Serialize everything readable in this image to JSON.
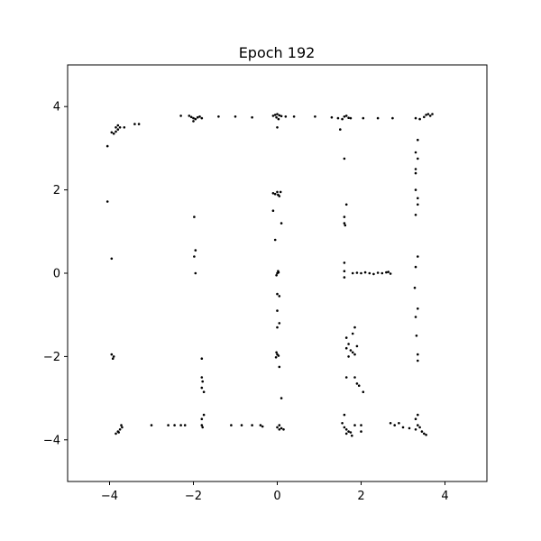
{
  "chart_data": {
    "type": "scatter",
    "title": "Epoch 192",
    "xlabel": "",
    "ylabel": "",
    "xlim": [
      -5,
      5
    ],
    "ylim": [
      -5,
      5
    ],
    "xticks": [
      -4,
      -2,
      0,
      2,
      4
    ],
    "yticks": [
      4,
      2,
      0,
      -2,
      -4
    ],
    "xtick_labels": [
      "−4",
      "−2",
      "0",
      "2",
      "4"
    ],
    "ytick_labels": [
      "4",
      "2",
      "0",
      "−2",
      "−4"
    ],
    "grid": false,
    "legend": "none",
    "marker_color": "#000000",
    "points": [
      [
        -2.1,
        3.78
      ],
      [
        -2.05,
        3.75
      ],
      [
        -2.0,
        3.72
      ],
      [
        -1.95,
        3.7
      ],
      [
        -1.9,
        3.74
      ],
      [
        -1.85,
        3.76
      ],
      [
        -2.0,
        3.65
      ],
      [
        -1.8,
        3.72
      ],
      [
        -2.3,
        3.78
      ],
      [
        -1.4,
        3.76
      ],
      [
        -1.0,
        3.76
      ],
      [
        -0.6,
        3.74
      ],
      [
        -0.1,
        3.78
      ],
      [
        -0.05,
        3.8
      ],
      [
        0.0,
        3.82
      ],
      [
        0.05,
        3.79
      ],
      [
        0.1,
        3.77
      ],
      [
        -0.02,
        3.74
      ],
      [
        0.03,
        3.7
      ],
      [
        0.0,
        3.5
      ],
      [
        0.2,
        3.76
      ],
      [
        0.4,
        3.76
      ],
      [
        0.9,
        3.76
      ],
      [
        1.3,
        3.74
      ],
      [
        1.45,
        3.72
      ],
      [
        1.55,
        3.7
      ],
      [
        1.6,
        3.76
      ],
      [
        1.65,
        3.78
      ],
      [
        1.7,
        3.73
      ],
      [
        1.75,
        3.72
      ],
      [
        1.5,
        3.45
      ],
      [
        2.05,
        3.72
      ],
      [
        2.4,
        3.72
      ],
      [
        2.75,
        3.72
      ],
      [
        3.3,
        3.72
      ],
      [
        3.4,
        3.7
      ],
      [
        3.5,
        3.75
      ],
      [
        3.55,
        3.8
      ],
      [
        3.6,
        3.82
      ],
      [
        3.7,
        3.82
      ],
      [
        3.65,
        3.78
      ],
      [
        -3.9,
        3.35
      ],
      [
        -3.85,
        3.4
      ],
      [
        -3.8,
        3.45
      ],
      [
        -3.85,
        3.5
      ],
      [
        -3.8,
        3.55
      ],
      [
        -3.75,
        3.5
      ],
      [
        -3.65,
        3.5
      ],
      [
        -3.4,
        3.58
      ],
      [
        -3.3,
        3.58
      ],
      [
        -4.05,
        3.05
      ],
      [
        -3.95,
        3.38
      ],
      [
        3.35,
        3.2
      ],
      [
        3.3,
        2.9
      ],
      [
        3.35,
        2.75
      ],
      [
        3.3,
        2.5
      ],
      [
        3.3,
        2.4
      ],
      [
        3.3,
        2.0
      ],
      [
        3.35,
        1.8
      ],
      [
        3.35,
        1.65
      ],
      [
        3.3,
        1.4
      ],
      [
        3.35,
        0.4
      ],
      [
        3.3,
        0.15
      ],
      [
        3.28,
        -0.35
      ],
      [
        3.35,
        -0.85
      ],
      [
        3.3,
        -1.05
      ],
      [
        3.32,
        -1.5
      ],
      [
        3.35,
        -1.95
      ],
      [
        3.35,
        -2.1
      ],
      [
        -0.1,
        1.92
      ],
      [
        -0.05,
        1.9
      ],
      [
        0.0,
        1.95
      ],
      [
        0.05,
        1.85
      ],
      [
        0.08,
        1.95
      ],
      [
        0.02,
        1.88
      ],
      [
        -0.1,
        1.5
      ],
      [
        0.1,
        1.2
      ],
      [
        -0.05,
        0.8
      ],
      [
        0.0,
        0.0
      ],
      [
        0.02,
        0.05
      ],
      [
        -0.02,
        -0.05
      ],
      [
        0.03,
        0.02
      ],
      [
        0.0,
        -0.5
      ],
      [
        0.05,
        -0.55
      ],
      [
        0.0,
        -0.9
      ],
      [
        0.05,
        -1.2
      ],
      [
        0.0,
        -1.3
      ],
      [
        -0.02,
        -1.9
      ],
      [
        0.0,
        -1.95
      ],
      [
        0.03,
        -1.98
      ],
      [
        -0.03,
        -2.02
      ],
      [
        0.05,
        -2.25
      ],
      [
        0.1,
        -3.0
      ],
      [
        1.6,
        2.75
      ],
      [
        1.65,
        1.65
      ],
      [
        1.6,
        1.35
      ],
      [
        1.6,
        1.2
      ],
      [
        1.62,
        1.15
      ],
      [
        1.6,
        0.25
      ],
      [
        1.6,
        0.05
      ],
      [
        1.6,
        -0.1
      ],
      [
        1.8,
        0.0
      ],
      [
        1.9,
        0.01
      ],
      [
        2.0,
        0.0
      ],
      [
        2.1,
        0.02
      ],
      [
        2.2,
        0.0
      ],
      [
        2.3,
        -0.02
      ],
      [
        2.4,
        0.01
      ],
      [
        2.5,
        0.0
      ],
      [
        2.6,
        0.02
      ],
      [
        2.65,
        0.03
      ],
      [
        2.7,
        -0.01
      ],
      [
        1.65,
        -1.55
      ],
      [
        1.7,
        -1.7
      ],
      [
        1.65,
        -1.8
      ],
      [
        1.75,
        -1.85
      ],
      [
        1.8,
        -1.9
      ],
      [
        1.85,
        -1.95
      ],
      [
        1.9,
        -1.75
      ],
      [
        1.8,
        -1.45
      ],
      [
        1.85,
        -1.3
      ],
      [
        1.7,
        -2.0
      ],
      [
        1.85,
        -2.5
      ],
      [
        1.65,
        -2.5
      ],
      [
        1.9,
        -2.65
      ],
      [
        2.05,
        -2.85
      ],
      [
        1.95,
        -2.7
      ],
      [
        -1.98,
        1.35
      ],
      [
        -1.95,
        0.55
      ],
      [
        -1.98,
        0.4
      ],
      [
        -1.95,
        0.0
      ],
      [
        -1.8,
        -2.05
      ],
      [
        -1.8,
        -2.5
      ],
      [
        -1.78,
        -2.6
      ],
      [
        -1.8,
        -2.75
      ],
      [
        -1.75,
        -2.85
      ],
      [
        -4.05,
        1.72
      ],
      [
        -3.95,
        0.35
      ],
      [
        -3.95,
        -1.95
      ],
      [
        -3.9,
        -2.0
      ],
      [
        -3.92,
        -2.05
      ],
      [
        -3.85,
        -3.85
      ],
      [
        -3.8,
        -3.8
      ],
      [
        -3.75,
        -3.75
      ],
      [
        -3.7,
        -3.7
      ],
      [
        -3.78,
        -3.82
      ],
      [
        -3.72,
        -3.65
      ],
      [
        -3.0,
        -3.65
      ],
      [
        -2.6,
        -3.65
      ],
      [
        -2.45,
        -3.65
      ],
      [
        -2.3,
        -3.65
      ],
      [
        -2.2,
        -3.65
      ],
      [
        -1.8,
        -3.65
      ],
      [
        -1.78,
        -3.7
      ],
      [
        -1.75,
        -3.4
      ],
      [
        -1.8,
        -3.5
      ],
      [
        -1.1,
        -3.65
      ],
      [
        -0.85,
        -3.65
      ],
      [
        -0.6,
        -3.65
      ],
      [
        -0.4,
        -3.65
      ],
      [
        -0.35,
        -3.68
      ],
      [
        0.0,
        -3.7
      ],
      [
        0.05,
        -3.65
      ],
      [
        0.1,
        -3.72
      ],
      [
        0.15,
        -3.75
      ],
      [
        0.05,
        -3.75
      ],
      [
        1.55,
        -3.6
      ],
      [
        1.6,
        -3.7
      ],
      [
        1.65,
        -3.75
      ],
      [
        1.7,
        -3.8
      ],
      [
        1.65,
        -3.85
      ],
      [
        1.75,
        -3.82
      ],
      [
        1.6,
        -3.4
      ],
      [
        1.85,
        -3.65
      ],
      [
        2.0,
        -3.65
      ],
      [
        2.0,
        -3.8
      ],
      [
        1.78,
        -3.9
      ],
      [
        2.7,
        -3.6
      ],
      [
        2.8,
        -3.65
      ],
      [
        2.9,
        -3.6
      ],
      [
        3.0,
        -3.7
      ],
      [
        3.15,
        -3.72
      ],
      [
        3.3,
        -3.75
      ],
      [
        3.35,
        -3.65
      ],
      [
        3.4,
        -3.7
      ],
      [
        3.45,
        -3.8
      ],
      [
        3.5,
        -3.85
      ],
      [
        3.55,
        -3.88
      ],
      [
        3.35,
        -3.4
      ],
      [
        3.3,
        -3.5
      ]
    ]
  }
}
